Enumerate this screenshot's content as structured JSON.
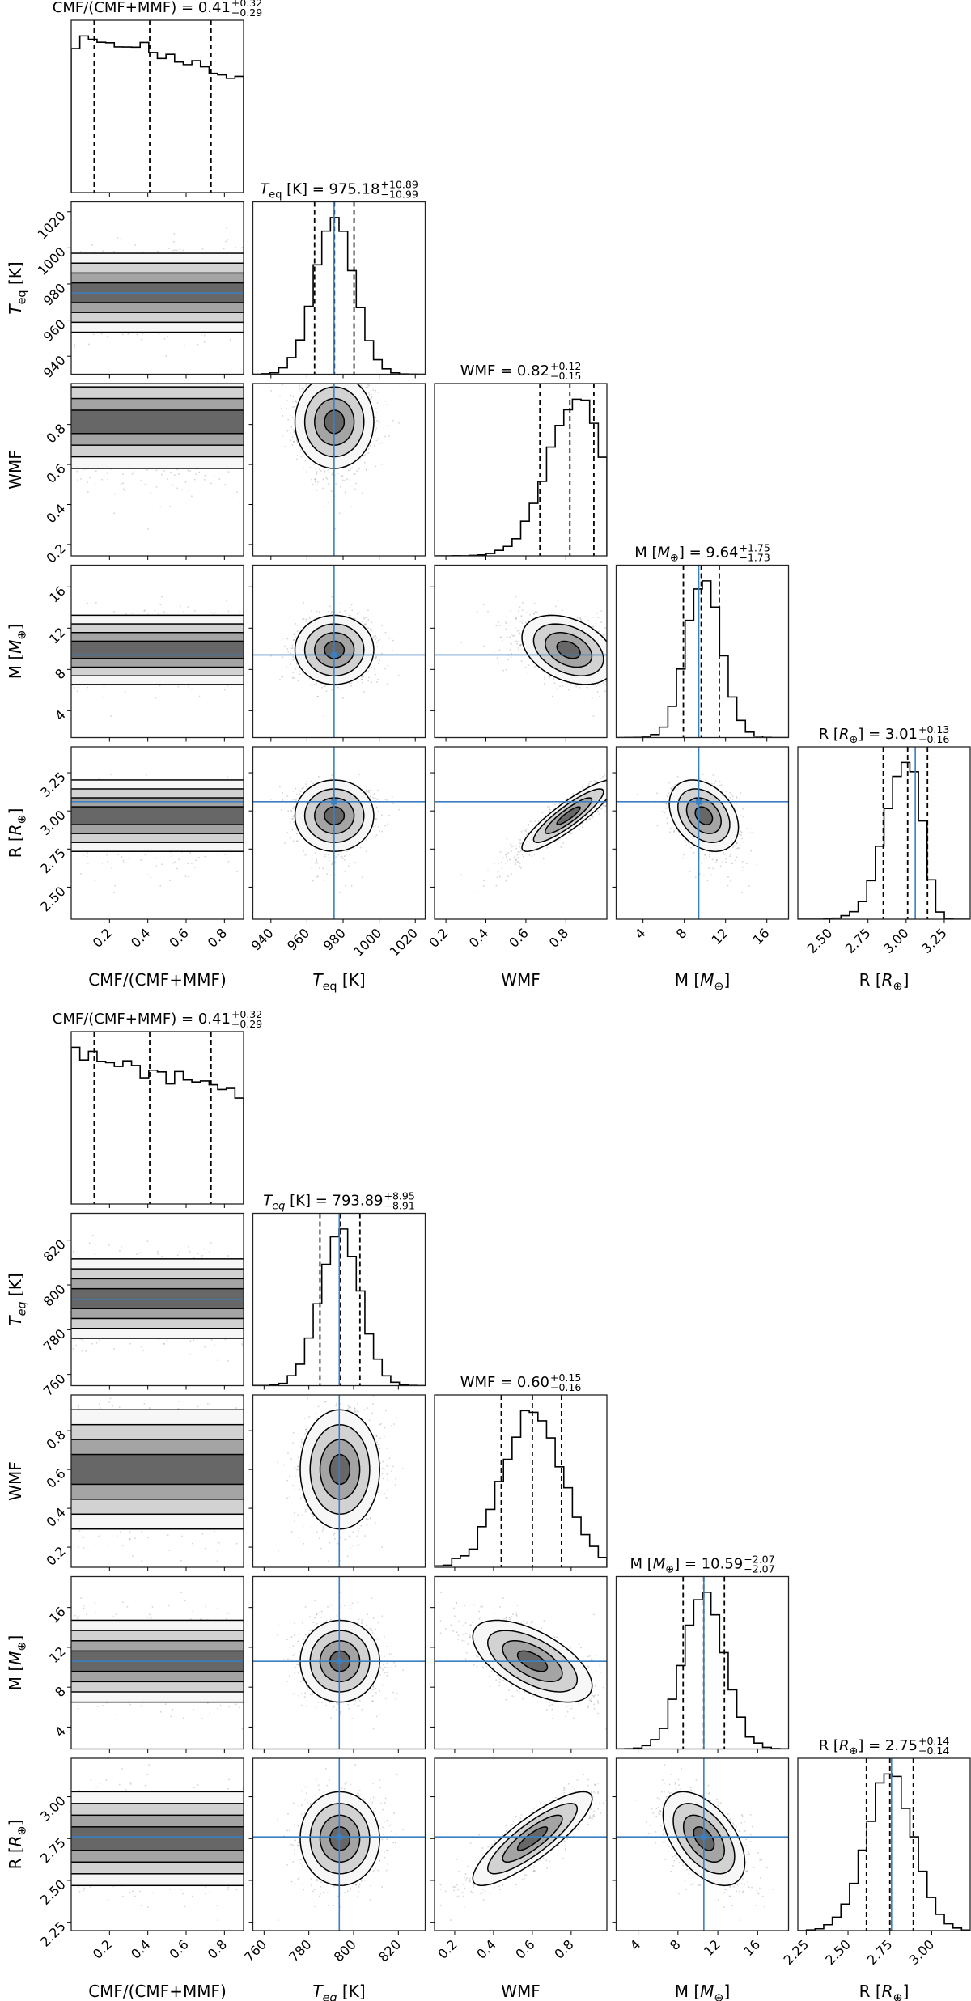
{
  "chart_data": [
    {
      "type": "corner",
      "params": [
        {
          "key": "cmf",
          "label": [
            {
              "t": "CMF/(CMF+MMF)"
            }
          ],
          "title_label": [
            {
              "t": "CMF/(CMF+MMF)"
            }
          ],
          "median": 0.41,
          "plus": "0.32",
          "minus": "0.29",
          "value": "0.41",
          "range": [
            0,
            0.9
          ],
          "ticks": [
            "0.2",
            "0.4",
            "0.6",
            "0.8"
          ],
          "truth": null,
          "dist": {
            "type": "linear",
            "ratio_end_to_start": 0.71
          }
        },
        {
          "key": "teq",
          "label": [
            {
              "t": "T",
              "i": 1
            },
            {
              "t": "eq",
              "sub": 1
            },
            {
              "t": " [K]"
            }
          ],
          "title_label": [
            {
              "t": "T",
              "i": 1
            },
            {
              "t": "eq",
              "sub": 1
            },
            {
              "t": " [K]"
            }
          ],
          "median": 975.18,
          "plus": "10.89",
          "minus": "10.99",
          "value": "975.18",
          "range": [
            930,
            1025.5
          ],
          "ticks": [
            "940",
            "960",
            "980",
            "1000",
            "1020"
          ],
          "truth": 975,
          "dist": {
            "type": "normal",
            "mean": 975.18,
            "sd": 10.94
          }
        },
        {
          "key": "wmf",
          "label": [
            {
              "t": "WMF"
            }
          ],
          "title_label": [
            {
              "t": "WMF"
            }
          ],
          "median": 0.82,
          "plus": "0.12",
          "minus": "0.15",
          "value": "0.82",
          "range": [
            0.143,
            1.005
          ],
          "ticks": [
            "0.2",
            "0.4",
            "0.6",
            "0.8"
          ],
          "truth": null,
          "dist": {
            "type": "normal",
            "mean": 0.86,
            "sd": 0.15,
            "max": 1.0
          }
        },
        {
          "key": "m",
          "label": [
            {
              "t": "M ["
            },
            {
              "t": "M",
              "i": 1
            },
            {
              "t": "⊕",
              "sub": 1
            },
            {
              "t": "]"
            }
          ],
          "title_label": [
            {
              "t": "M ["
            },
            {
              "t": "M",
              "i": 1
            },
            {
              "t": "⊕",
              "sub": 1
            },
            {
              "t": "]"
            }
          ],
          "median": 9.64,
          "plus": "1.75",
          "minus": "1.73",
          "value": "9.64",
          "range": [
            1.4,
            18.1
          ],
          "ticks": [
            "4",
            "8",
            "12",
            "16"
          ],
          "truth": 9.4,
          "dist": {
            "type": "normal",
            "mean": 9.64,
            "sd": 1.74
          }
        },
        {
          "key": "r",
          "label": [
            {
              "t": "R ["
            },
            {
              "t": "R",
              "i": 1
            },
            {
              "t": "⊕",
              "sub": 1
            },
            {
              "t": "]"
            }
          ],
          "title_label": [
            {
              "t": "R ["
            },
            {
              "t": "R",
              "i": 1
            },
            {
              "t": "⊕",
              "sub": 1
            },
            {
              "t": "]"
            }
          ],
          "median": 3.01,
          "plus": "0.13",
          "minus": "0.16",
          "value": "3.01",
          "range": [
            2.29,
            3.42
          ],
          "ticks": [
            "2.50",
            "2.75",
            "3.00",
            "3.25"
          ],
          "truth": 3.06,
          "dist": {
            "type": "normal",
            "mean": 3.01,
            "sd": 0.145
          }
        }
      ],
      "correlations": {
        "wmf-m": -0.45,
        "wmf-r": 0.93
      }
    },
    {
      "type": "corner",
      "params": [
        {
          "key": "cmf",
          "label": [
            {
              "t": "CMF/(CMF+MMF)"
            }
          ],
          "title_label": [
            {
              "t": "CMF/(CMF+MMF)"
            }
          ],
          "median": 0.41,
          "plus": "0.32",
          "minus": "0.29",
          "value": "0.41",
          "range": [
            0,
            0.9
          ],
          "ticks": [
            "0.2",
            "0.4",
            "0.6",
            "0.8"
          ],
          "truth": null,
          "dist": {
            "type": "linear",
            "ratio_end_to_start": 0.71
          }
        },
        {
          "key": "teq",
          "label": [
            {
              "t": "T",
              "i": 1
            },
            {
              "t": "eq",
              "sub": 1,
              "i": 1
            },
            {
              "t": " [K]"
            }
          ],
          "title_label": [
            {
              "t": "T",
              "i": 1
            },
            {
              "t": "eq",
              "sub": 1,
              "i": 1
            },
            {
              "t": " [K]"
            }
          ],
          "median": 793.89,
          "plus": "8.95",
          "minus": "8.91",
          "value": "793.89",
          "range": [
            755,
            832
          ],
          "ticks": [
            "760",
            "780",
            "800",
            "820"
          ],
          "truth": 793.6,
          "dist": {
            "type": "normal",
            "mean": 793.89,
            "sd": 8.93
          }
        },
        {
          "key": "wmf",
          "label": [
            {
              "t": "WMF"
            }
          ],
          "title_label": [
            {
              "t": "WMF"
            }
          ],
          "median": 0.6,
          "plus": "0.15",
          "minus": "0.16",
          "value": "0.60",
          "range": [
            0.096,
            0.984
          ],
          "ticks": [
            "0.2",
            "0.4",
            "0.6",
            "0.8"
          ],
          "truth": null,
          "dist": {
            "type": "normal",
            "mean": 0.6,
            "sd": 0.155
          }
        },
        {
          "key": "m",
          "label": [
            {
              "t": "M ["
            },
            {
              "t": "M",
              "i": 1
            },
            {
              "t": "⊕",
              "sub": 1
            },
            {
              "t": "]"
            }
          ],
          "title_label": [
            {
              "t": "M ["
            },
            {
              "t": "M",
              "i": 1
            },
            {
              "t": "⊕",
              "sub": 1
            },
            {
              "t": "]"
            }
          ],
          "median": 10.59,
          "plus": "2.07",
          "minus": "2.07",
          "value": "10.59",
          "range": [
            1.8,
            19.1
          ],
          "ticks": [
            "4",
            "8",
            "12",
            "16"
          ],
          "truth": 10.6,
          "dist": {
            "type": "normal",
            "mean": 10.59,
            "sd": 2.07
          }
        },
        {
          "key": "r",
          "label": [
            {
              "t": "R ["
            },
            {
              "t": "R",
              "i": 1
            },
            {
              "t": "⊕",
              "sub": 1
            },
            {
              "t": "]"
            }
          ],
          "title_label": [
            {
              "t": "R ["
            },
            {
              "t": "R",
              "i": 1
            },
            {
              "t": "⊕",
              "sub": 1
            },
            {
              "t": "]"
            }
          ],
          "median": 2.75,
          "plus": "0.14",
          "minus": "0.14",
          "value": "2.75",
          "range": [
            2.2,
            3.23
          ],
          "ticks": [
            "2.25",
            "2.50",
            "2.75",
            "3.00"
          ],
          "truth": 2.76,
          "dist": {
            "type": "normal",
            "mean": 2.75,
            "sd": 0.14
          }
        }
      ],
      "correlations": {
        "wmf-m": -0.6,
        "wmf-r": 0.85
      }
    }
  ],
  "colors": {
    "truth": "#3a7fc1",
    "line": "#000000",
    "levels": [
      "#f7f7f7",
      "#d2d2d2",
      "#a4a4a4",
      "#676767"
    ]
  },
  "contour_levels_sigma": [
    2,
    1.5,
    1,
    0.5
  ],
  "histogram_bins": 20
}
